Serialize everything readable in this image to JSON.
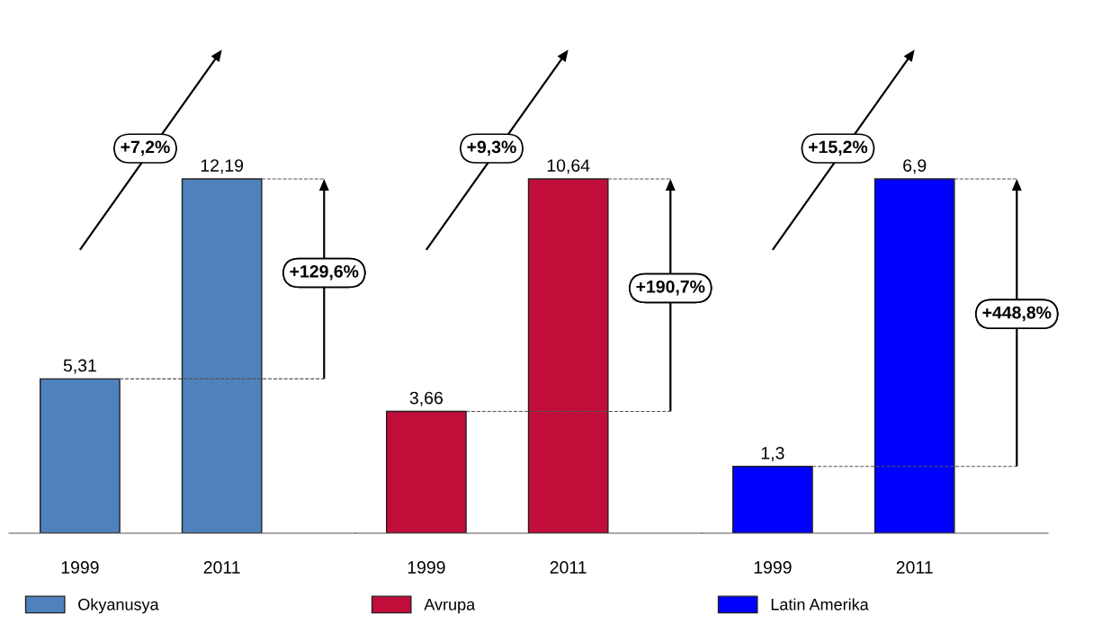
{
  "chart_data": [
    {
      "type": "bar",
      "categories": [
        "1999",
        "2011"
      ],
      "series": [
        {
          "name": "Okyanusya",
          "color": "#4f81bd",
          "values": [
            5.31,
            12.19
          ],
          "value_labels": [
            "5,31",
            "12,19"
          ]
        }
      ],
      "data_labels": true,
      "ref_lines": [
        {
          "axis": "y",
          "value": 5.31,
          "color": "#555555",
          "line_style": "dashed"
        },
        {
          "axis": "y",
          "value": 12.19,
          "color": "#555555",
          "line_style": "dashed"
        }
      ],
      "legend": "bottom",
      "annotations": [
        "+7,2%",
        "+129,6%"
      ]
    },
    {
      "type": "bar",
      "categories": [
        "1999",
        "2011"
      ],
      "series": [
        {
          "name": "Avrupa",
          "color": "#c00d3a",
          "values": [
            3.66,
            10.64
          ],
          "value_labels": [
            "3,66",
            "10,64"
          ]
        }
      ],
      "data_labels": true,
      "ref_lines": [
        {
          "axis": "y",
          "value": 3.66,
          "color": "#555555",
          "line_style": "dashed"
        },
        {
          "axis": "y",
          "value": 10.64,
          "color": "#555555",
          "line_style": "dashed"
        }
      ],
      "legend": "bottom",
      "annotations": [
        "+9,3%",
        "+190,7%"
      ]
    },
    {
      "type": "bar",
      "categories": [
        "1999",
        "2011"
      ],
      "series": [
        {
          "name": "Latin Amerika",
          "color": "#0000ff",
          "values": [
            1.3,
            6.9
          ],
          "value_labels": [
            "1,3",
            "6,9"
          ]
        }
      ],
      "data_labels": true,
      "ref_lines": [
        {
          "axis": "y",
          "value": 1.3,
          "color": "#555555",
          "line_style": "dashed"
        },
        {
          "axis": "y",
          "value": 6.9,
          "color": "#555555",
          "line_style": "dashed"
        }
      ],
      "legend": "bottom",
      "annotations": [
        "+15,2%",
        "+448,8%"
      ]
    }
  ]
}
